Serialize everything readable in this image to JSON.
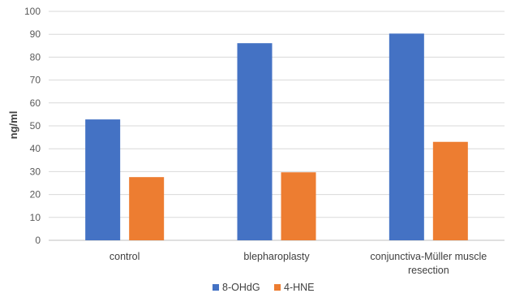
{
  "chart_data": {
    "type": "bar",
    "categories": [
      [
        "control"
      ],
      [
        "blepharoplasty"
      ],
      [
        "conjunctiva-Müller muscle",
        "resection"
      ]
    ],
    "series": [
      {
        "name": "8-OHdG",
        "color": "#4472C4",
        "values": [
          52.8,
          86.1,
          90.3
        ]
      },
      {
        "name": "4-HNE",
        "color": "#ED7D31",
        "values": [
          27.6,
          29.7,
          43.0
        ]
      }
    ],
    "xlabel": "",
    "ylabel": "ng/ml",
    "ylim": [
      0,
      100
    ],
    "yticks": [
      0,
      10,
      20,
      30,
      40,
      50,
      60,
      70,
      80,
      90,
      100
    ],
    "grid": true,
    "legend": "bottom"
  }
}
